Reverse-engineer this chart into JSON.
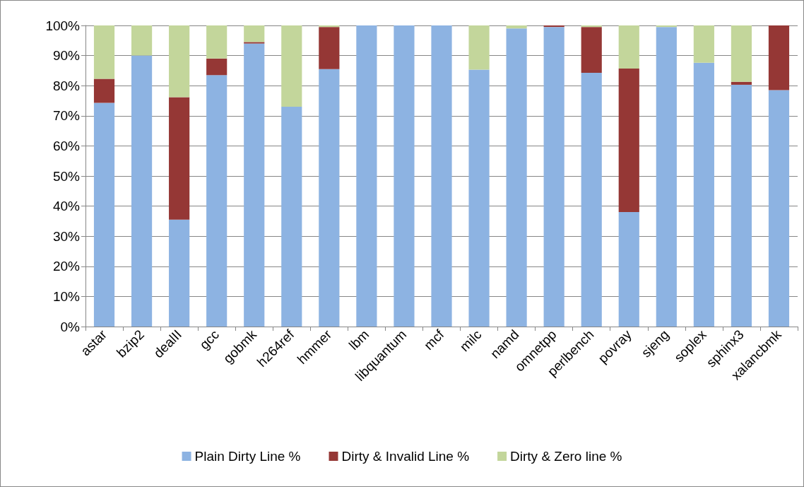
{
  "chart_data": {
    "type": "bar",
    "stacked": true,
    "categories": [
      "astar",
      "bzip2",
      "dealII",
      "gcc",
      "gobmk",
      "h264ref",
      "hmmer",
      "lbm",
      "libquantum",
      "mcf",
      "milc",
      "namd",
      "omnetpp",
      "perlbench",
      "povray",
      "sjeng",
      "soplex",
      "sphinx3",
      "xalancbmk"
    ],
    "series": [
      {
        "name": "Plain Dirty Line %",
        "color": "#8db3e2",
        "values": [
          74.3,
          90,
          35.5,
          83.5,
          94,
          73,
          85.5,
          100,
          100,
          100,
          85.3,
          99,
          99.5,
          84.3,
          38,
          99.5,
          87.6,
          80.3,
          78.5
        ]
      },
      {
        "name": "Dirty & Invalid Line %",
        "color": "#953735",
        "values": [
          8,
          0,
          40.7,
          5.5,
          0.5,
          0,
          14,
          0,
          0,
          0,
          0,
          0,
          0.5,
          15.2,
          47.7,
          0,
          0,
          1,
          21.5
        ]
      },
      {
        "name": "Dirty & Zero line %",
        "color": "#c3d69b",
        "values": [
          17.7,
          10,
          23.8,
          11,
          5.5,
          27,
          0.5,
          0,
          0,
          0,
          14.7,
          1,
          0,
          0.5,
          14.3,
          0.5,
          12.4,
          18.7,
          0
        ]
      }
    ],
    "ylim": [
      0,
      100
    ],
    "yticks": [
      {
        "value": 0,
        "label": "0%"
      },
      {
        "value": 10,
        "label": "10%"
      },
      {
        "value": 20,
        "label": "20%"
      },
      {
        "value": 30,
        "label": "30%"
      },
      {
        "value": 40,
        "label": "40%"
      },
      {
        "value": 50,
        "label": "50%"
      },
      {
        "value": 60,
        "label": "60%"
      },
      {
        "value": 70,
        "label": "70%"
      },
      {
        "value": 80,
        "label": "80%"
      },
      {
        "value": 90,
        "label": "90%"
      },
      {
        "value": 100,
        "label": "100%"
      }
    ],
    "grid": "y",
    "legend": "bottom"
  }
}
